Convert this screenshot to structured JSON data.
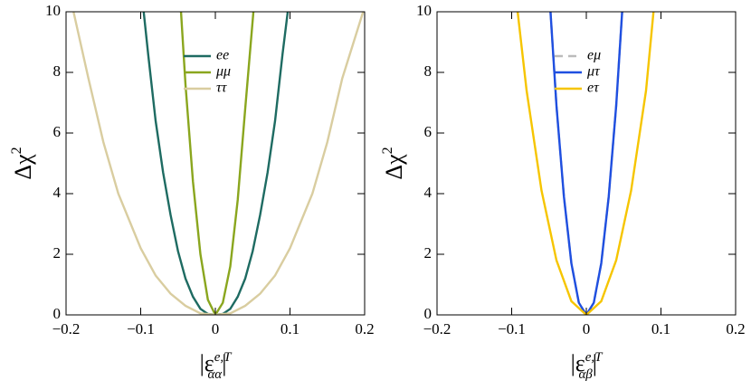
{
  "chart_data": [
    {
      "type": "line",
      "xlim": [
        -0.2,
        0.2
      ],
      "ylim": [
        0,
        10
      ],
      "xticks": [
        {
          "value": -0.2,
          "label": "−0.2"
        },
        {
          "value": -0.1,
          "label": "−0.1"
        },
        0,
        0.1,
        0.2
      ],
      "yticks": [
        0,
        2,
        4,
        6,
        8,
        10
      ],
      "x_label": {
        "base": "|ε",
        "sup": "e,T",
        "sub": "αα",
        "end": "|"
      },
      "y_label": {
        "base": "Δχ",
        "sup": "2"
      },
      "legend": "upper center",
      "series": [
        {
          "name": "ee",
          "color": "#1e6b62",
          "x": [
            -0.096,
            -0.09,
            -0.08,
            -0.07,
            -0.06,
            -0.05,
            -0.04,
            -0.03,
            -0.02,
            -0.01,
            0,
            0.01,
            0.02,
            0.03,
            0.04,
            0.05,
            0.06,
            0.07,
            0.08,
            0.09,
            0.097
          ],
          "values": [
            10,
            8.6,
            6.4,
            4.7,
            3.3,
            2.1,
            1.2,
            0.6,
            0.2,
            0.03,
            0,
            0.03,
            0.2,
            0.6,
            1.2,
            2.1,
            3.3,
            4.7,
            6.4,
            8.6,
            10
          ]
        },
        {
          "name": "μμ",
          "color": "#8aa61e",
          "x": [
            -0.046,
            -0.04,
            -0.03,
            -0.02,
            -0.01,
            0,
            0.01,
            0.02,
            0.03,
            0.04,
            0.051
          ],
          "values": [
            10,
            7.6,
            4.4,
            2.0,
            0.5,
            0,
            0.4,
            1.6,
            3.8,
            6.8,
            10
          ]
        },
        {
          "name": "ττ",
          "color": "#d9cda0",
          "x": [
            -0.19,
            -0.17,
            -0.15,
            -0.13,
            -0.1,
            -0.08,
            -0.06,
            -0.04,
            -0.02,
            0,
            0.02,
            0.04,
            0.06,
            0.08,
            0.1,
            0.13,
            0.15,
            0.17,
            0.198
          ],
          "values": [
            10,
            7.8,
            5.7,
            4.0,
            2.2,
            1.3,
            0.7,
            0.3,
            0.05,
            0,
            0.05,
            0.3,
            0.7,
            1.3,
            2.2,
            4.0,
            5.7,
            7.8,
            10
          ]
        }
      ]
    },
    {
      "type": "line",
      "xlim": [
        -0.2,
        0.2
      ],
      "ylim": [
        0,
        10
      ],
      "xticks": [
        {
          "value": -0.2,
          "label": "−0.2"
        },
        {
          "value": -0.1,
          "label": "−0.1"
        },
        0,
        0.1,
        0.2
      ],
      "yticks": [
        0,
        2,
        4,
        6,
        8,
        10
      ],
      "x_label": {
        "base": "|ε",
        "sup": "e,T",
        "sub": "αβ",
        "end": "|"
      },
      "y_label": {
        "base": "Δχ",
        "sup": "2"
      },
      "legend": "upper center",
      "series": [
        {
          "name": "eμ",
          "color": "#bbbbbb",
          "dash": true,
          "x": [
            -0.048,
            -0.04,
            -0.03,
            -0.02,
            -0.01,
            0,
            0.01,
            0.02,
            0.03,
            0.04,
            0.048
          ],
          "values": [
            10,
            6.9,
            3.9,
            1.7,
            0.4,
            0,
            0.4,
            1.7,
            3.9,
            6.9,
            10
          ]
        },
        {
          "name": "μτ",
          "color": "#1f4fe0",
          "x": [
            -0.048,
            -0.04,
            -0.03,
            -0.02,
            -0.01,
            0,
            0.01,
            0.02,
            0.03,
            0.04,
            0.048
          ],
          "values": [
            10,
            6.9,
            3.9,
            1.7,
            0.4,
            0,
            0.4,
            1.7,
            3.9,
            6.9,
            10
          ]
        },
        {
          "name": "eτ",
          "color": "#f6c500",
          "x": [
            -0.092,
            -0.08,
            -0.06,
            -0.04,
            -0.02,
            0,
            0.02,
            0.04,
            0.06,
            0.08,
            0.09
          ],
          "values": [
            10,
            7.4,
            4.1,
            1.8,
            0.45,
            0,
            0.45,
            1.8,
            4.1,
            7.4,
            10
          ]
        }
      ]
    }
  ]
}
